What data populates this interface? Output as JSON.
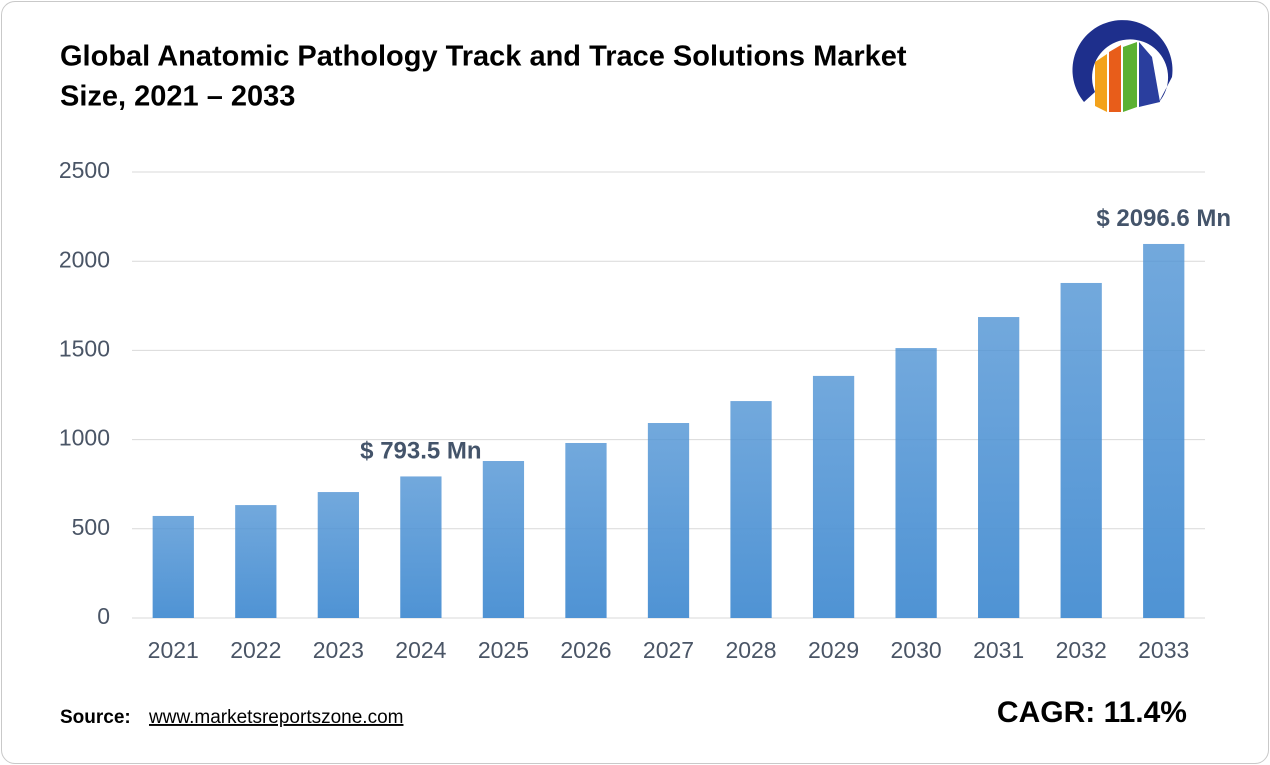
{
  "chart_data": {
    "type": "bar",
    "title": [
      "Global Anatomic Pathology Track and Trace Solutions Market",
      "Size, 2021 – 2033"
    ],
    "categories": [
      "2021",
      "2022",
      "2023",
      "2024",
      "2025",
      "2026",
      "2027",
      "2028",
      "2029",
      "2030",
      "2031",
      "2032",
      "2033"
    ],
    "values": [
      572,
      633,
      706,
      793.5,
      880,
      981,
      1093,
      1216,
      1357,
      1513,
      1687,
      1878,
      2096.6
    ],
    "value_labels": [
      null,
      null,
      null,
      "$ 793.5 Mn",
      null,
      null,
      null,
      null,
      null,
      null,
      null,
      null,
      "$ 2096.6 Mn"
    ],
    "color": "#4f93d4",
    "ylim": [
      0,
      2500
    ],
    "yticks": [
      0,
      500,
      1000,
      1500,
      2000,
      2500
    ],
    "grid": true,
    "source_label": "Source:",
    "source_url": "www.marketsreportszone.com",
    "cagr": "CAGR: 11.4%"
  }
}
